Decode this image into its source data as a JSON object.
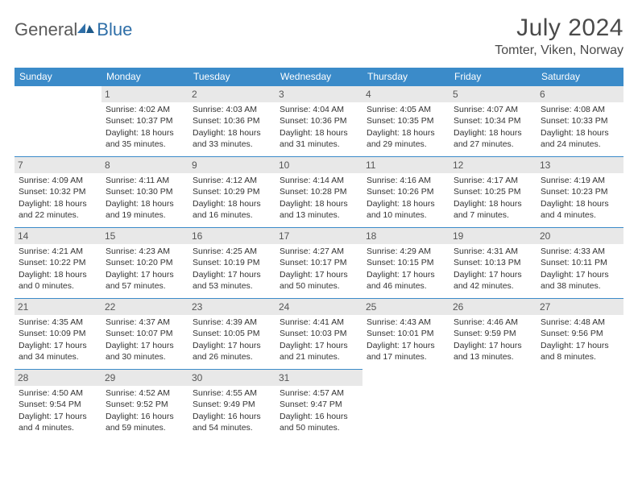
{
  "brand": {
    "part1": "General",
    "part2": "Blue"
  },
  "title": "July 2024",
  "subtitle": "Tomter, Viken, Norway",
  "colors": {
    "header_bg": "#3b8bc9",
    "header_text": "#ffffff",
    "daynum_bg": "#e8e8e8",
    "border": "#3b8bc9",
    "logo_gray": "#5a5a5a",
    "logo_blue": "#2f6fa8"
  },
  "weekdays": [
    "Sunday",
    "Monday",
    "Tuesday",
    "Wednesday",
    "Thursday",
    "Friday",
    "Saturday"
  ],
  "weeks": [
    [
      null,
      {
        "d": "1",
        "sr": "4:02 AM",
        "ss": "10:37 PM",
        "dl": "18 hours and 35 minutes."
      },
      {
        "d": "2",
        "sr": "4:03 AM",
        "ss": "10:36 PM",
        "dl": "18 hours and 33 minutes."
      },
      {
        "d": "3",
        "sr": "4:04 AM",
        "ss": "10:36 PM",
        "dl": "18 hours and 31 minutes."
      },
      {
        "d": "4",
        "sr": "4:05 AM",
        "ss": "10:35 PM",
        "dl": "18 hours and 29 minutes."
      },
      {
        "d": "5",
        "sr": "4:07 AM",
        "ss": "10:34 PM",
        "dl": "18 hours and 27 minutes."
      },
      {
        "d": "6",
        "sr": "4:08 AM",
        "ss": "10:33 PM",
        "dl": "18 hours and 24 minutes."
      }
    ],
    [
      {
        "d": "7",
        "sr": "4:09 AM",
        "ss": "10:32 PM",
        "dl": "18 hours and 22 minutes."
      },
      {
        "d": "8",
        "sr": "4:11 AM",
        "ss": "10:30 PM",
        "dl": "18 hours and 19 minutes."
      },
      {
        "d": "9",
        "sr": "4:12 AM",
        "ss": "10:29 PM",
        "dl": "18 hours and 16 minutes."
      },
      {
        "d": "10",
        "sr": "4:14 AM",
        "ss": "10:28 PM",
        "dl": "18 hours and 13 minutes."
      },
      {
        "d": "11",
        "sr": "4:16 AM",
        "ss": "10:26 PM",
        "dl": "18 hours and 10 minutes."
      },
      {
        "d": "12",
        "sr": "4:17 AM",
        "ss": "10:25 PM",
        "dl": "18 hours and 7 minutes."
      },
      {
        "d": "13",
        "sr": "4:19 AM",
        "ss": "10:23 PM",
        "dl": "18 hours and 4 minutes."
      }
    ],
    [
      {
        "d": "14",
        "sr": "4:21 AM",
        "ss": "10:22 PM",
        "dl": "18 hours and 0 minutes."
      },
      {
        "d": "15",
        "sr": "4:23 AM",
        "ss": "10:20 PM",
        "dl": "17 hours and 57 minutes."
      },
      {
        "d": "16",
        "sr": "4:25 AM",
        "ss": "10:19 PM",
        "dl": "17 hours and 53 minutes."
      },
      {
        "d": "17",
        "sr": "4:27 AM",
        "ss": "10:17 PM",
        "dl": "17 hours and 50 minutes."
      },
      {
        "d": "18",
        "sr": "4:29 AM",
        "ss": "10:15 PM",
        "dl": "17 hours and 46 minutes."
      },
      {
        "d": "19",
        "sr": "4:31 AM",
        "ss": "10:13 PM",
        "dl": "17 hours and 42 minutes."
      },
      {
        "d": "20",
        "sr": "4:33 AM",
        "ss": "10:11 PM",
        "dl": "17 hours and 38 minutes."
      }
    ],
    [
      {
        "d": "21",
        "sr": "4:35 AM",
        "ss": "10:09 PM",
        "dl": "17 hours and 34 minutes."
      },
      {
        "d": "22",
        "sr": "4:37 AM",
        "ss": "10:07 PM",
        "dl": "17 hours and 30 minutes."
      },
      {
        "d": "23",
        "sr": "4:39 AM",
        "ss": "10:05 PM",
        "dl": "17 hours and 26 minutes."
      },
      {
        "d": "24",
        "sr": "4:41 AM",
        "ss": "10:03 PM",
        "dl": "17 hours and 21 minutes."
      },
      {
        "d": "25",
        "sr": "4:43 AM",
        "ss": "10:01 PM",
        "dl": "17 hours and 17 minutes."
      },
      {
        "d": "26",
        "sr": "4:46 AM",
        "ss": "9:59 PM",
        "dl": "17 hours and 13 minutes."
      },
      {
        "d": "27",
        "sr": "4:48 AM",
        "ss": "9:56 PM",
        "dl": "17 hours and 8 minutes."
      }
    ],
    [
      {
        "d": "28",
        "sr": "4:50 AM",
        "ss": "9:54 PM",
        "dl": "17 hours and 4 minutes."
      },
      {
        "d": "29",
        "sr": "4:52 AM",
        "ss": "9:52 PM",
        "dl": "16 hours and 59 minutes."
      },
      {
        "d": "30",
        "sr": "4:55 AM",
        "ss": "9:49 PM",
        "dl": "16 hours and 54 minutes."
      },
      {
        "d": "31",
        "sr": "4:57 AM",
        "ss": "9:47 PM",
        "dl": "16 hours and 50 minutes."
      },
      null,
      null,
      null
    ]
  ],
  "labels": {
    "sunrise": "Sunrise:",
    "sunset": "Sunset:",
    "daylight": "Daylight:"
  }
}
